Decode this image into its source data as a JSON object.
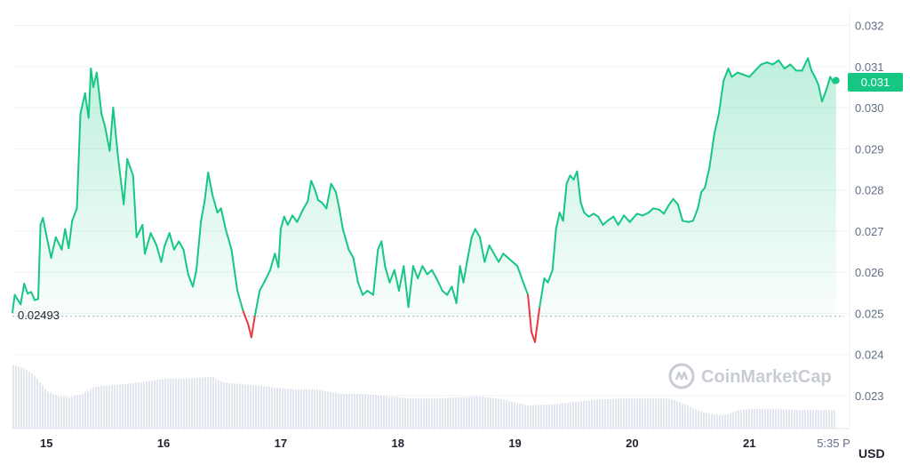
{
  "chart_data": {
    "type": "line",
    "y_ticks": [
      "0.032",
      "0.031",
      "0.030",
      "0.029",
      "0.028",
      "0.027",
      "0.026",
      "0.025",
      "0.024",
      "0.023"
    ],
    "y_tick_values": [
      0.032,
      0.031,
      0.03,
      0.029,
      0.028,
      0.027,
      0.026,
      0.025,
      0.024,
      0.023
    ],
    "ylim": [
      0.0222,
      0.0324
    ],
    "x_ticks": [
      "15",
      "16",
      "17",
      "18",
      "19",
      "20",
      "21"
    ],
    "x_last_tick": "5:35 P",
    "x_range_days": [
      14.71,
      21.81
    ],
    "unit_label": "USD",
    "reference_value": 0.02493,
    "reference_label": "0.02493",
    "current_price_label": "0.031",
    "current_price": 0.03066,
    "watermark": "CoinMarketCap",
    "colors": {
      "up": "#16c784",
      "down": "#ea3943",
      "grid": "#eff2f5",
      "tag": "#16c784"
    },
    "series": [
      {
        "values": [
          [
            14.71,
            0.02502
          ],
          [
            14.73,
            0.02545
          ],
          [
            14.75,
            0.02535
          ],
          [
            14.78,
            0.02522
          ],
          [
            14.81,
            0.02572
          ],
          [
            14.84,
            0.02548
          ],
          [
            14.87,
            0.02552
          ],
          [
            14.9,
            0.02532
          ],
          [
            14.93,
            0.02535
          ],
          [
            14.95,
            0.02715
          ],
          [
            14.97,
            0.02732
          ],
          [
            15.0,
            0.0269
          ],
          [
            15.04,
            0.02635
          ],
          [
            15.08,
            0.02685
          ],
          [
            15.13,
            0.02655
          ],
          [
            15.16,
            0.02705
          ],
          [
            15.19,
            0.02658
          ],
          [
            15.22,
            0.02725
          ],
          [
            15.26,
            0.02755
          ],
          [
            15.29,
            0.02985
          ],
          [
            15.33,
            0.03035
          ],
          [
            15.36,
            0.02975
          ],
          [
            15.38,
            0.03095
          ],
          [
            15.4,
            0.0305
          ],
          [
            15.43,
            0.03085
          ],
          [
            15.47,
            0.02985
          ],
          [
            15.5,
            0.02955
          ],
          [
            15.54,
            0.02895
          ],
          [
            15.57,
            0.03
          ],
          [
            15.61,
            0.02885
          ],
          [
            15.66,
            0.02765
          ],
          [
            15.69,
            0.02875
          ],
          [
            15.74,
            0.02835
          ],
          [
            15.77,
            0.02685
          ],
          [
            15.82,
            0.02715
          ],
          [
            15.84,
            0.02645
          ],
          [
            15.89,
            0.02695
          ],
          [
            15.94,
            0.02665
          ],
          [
            15.98,
            0.02625
          ],
          [
            16.01,
            0.02665
          ],
          [
            16.05,
            0.02695
          ],
          [
            16.09,
            0.02655
          ],
          [
            16.13,
            0.02675
          ],
          [
            16.17,
            0.02655
          ],
          [
            16.21,
            0.02595
          ],
          [
            16.25,
            0.02565
          ],
          [
            16.28,
            0.02605
          ],
          [
            16.32,
            0.02725
          ],
          [
            16.35,
            0.02772
          ],
          [
            16.38,
            0.02842
          ],
          [
            16.42,
            0.02785
          ],
          [
            16.46,
            0.02745
          ],
          [
            16.49,
            0.02755
          ],
          [
            16.53,
            0.02705
          ],
          [
            16.58,
            0.02655
          ],
          [
            16.63,
            0.02555
          ],
          [
            16.68,
            0.02505
          ],
          [
            16.72,
            0.02475
          ],
          [
            16.75,
            0.02442
          ],
          [
            16.78,
            0.02495
          ],
          [
            16.82,
            0.02555
          ],
          [
            16.87,
            0.02582
          ],
          [
            16.91,
            0.02605
          ],
          [
            16.95,
            0.02645
          ],
          [
            16.98,
            0.02612
          ],
          [
            17.0,
            0.02705
          ],
          [
            17.03,
            0.02735
          ],
          [
            17.06,
            0.02715
          ],
          [
            17.1,
            0.02738
          ],
          [
            17.14,
            0.02722
          ],
          [
            17.19,
            0.02752
          ],
          [
            17.23,
            0.02772
          ],
          [
            17.26,
            0.02822
          ],
          [
            17.29,
            0.02802
          ],
          [
            17.32,
            0.02775
          ],
          [
            17.35,
            0.0277
          ],
          [
            17.39,
            0.02755
          ],
          [
            17.43,
            0.02815
          ],
          [
            17.47,
            0.02795
          ],
          [
            17.5,
            0.02755
          ],
          [
            17.53,
            0.02705
          ],
          [
            17.58,
            0.02655
          ],
          [
            17.62,
            0.02635
          ],
          [
            17.66,
            0.02575
          ],
          [
            17.7,
            0.02545
          ],
          [
            17.74,
            0.02555
          ],
          [
            17.79,
            0.02545
          ],
          [
            17.83,
            0.02655
          ],
          [
            17.86,
            0.02675
          ],
          [
            17.89,
            0.02615
          ],
          [
            17.93,
            0.02575
          ],
          [
            17.97,
            0.02605
          ],
          [
            18.01,
            0.02555
          ],
          [
            18.05,
            0.02615
          ],
          [
            18.09,
            0.02515
          ],
          [
            18.13,
            0.02615
          ],
          [
            18.17,
            0.02585
          ],
          [
            18.21,
            0.02615
          ],
          [
            18.25,
            0.02595
          ],
          [
            18.29,
            0.02605
          ],
          [
            18.33,
            0.02585
          ],
          [
            18.38,
            0.02555
          ],
          [
            18.42,
            0.02545
          ],
          [
            18.46,
            0.02565
          ],
          [
            18.5,
            0.02525
          ],
          [
            18.53,
            0.02615
          ],
          [
            18.56,
            0.02575
          ],
          [
            18.59,
            0.02625
          ],
          [
            18.63,
            0.02685
          ],
          [
            18.66,
            0.02705
          ],
          [
            18.7,
            0.02685
          ],
          [
            18.74,
            0.02625
          ],
          [
            18.78,
            0.02665
          ],
          [
            18.82,
            0.02645
          ],
          [
            18.86,
            0.02625
          ],
          [
            18.9,
            0.02645
          ],
          [
            18.94,
            0.02635
          ],
          [
            18.98,
            0.02625
          ],
          [
            19.02,
            0.02615
          ],
          [
            19.07,
            0.02575
          ],
          [
            19.11,
            0.02545
          ],
          [
            19.14,
            0.02455
          ],
          [
            19.17,
            0.0243
          ],
          [
            19.21,
            0.02515
          ],
          [
            19.25,
            0.02585
          ],
          [
            19.28,
            0.02575
          ],
          [
            19.32,
            0.02605
          ],
          [
            19.35,
            0.02705
          ],
          [
            19.38,
            0.02745
          ],
          [
            19.41,
            0.02725
          ],
          [
            19.44,
            0.02815
          ],
          [
            19.47,
            0.02835
          ],
          [
            19.5,
            0.02825
          ],
          [
            19.53,
            0.02845
          ],
          [
            19.56,
            0.0277
          ],
          [
            19.59,
            0.02745
          ],
          [
            19.63,
            0.02735
          ],
          [
            19.67,
            0.02742
          ],
          [
            19.71,
            0.02735
          ],
          [
            19.75,
            0.02715
          ],
          [
            19.79,
            0.02725
          ],
          [
            19.84,
            0.02735
          ],
          [
            19.88,
            0.02715
          ],
          [
            19.93,
            0.02738
          ],
          [
            19.98,
            0.02722
          ],
          [
            20.04,
            0.02742
          ],
          [
            20.09,
            0.02738
          ],
          [
            20.14,
            0.02745
          ],
          [
            20.18,
            0.02755
          ],
          [
            20.23,
            0.02752
          ],
          [
            20.27,
            0.02742
          ],
          [
            20.31,
            0.02762
          ],
          [
            20.35,
            0.02778
          ],
          [
            20.39,
            0.02765
          ],
          [
            20.43,
            0.02725
          ],
          [
            20.48,
            0.02722
          ],
          [
            20.52,
            0.02725
          ],
          [
            20.56,
            0.02755
          ],
          [
            20.59,
            0.02795
          ],
          [
            20.62,
            0.02805
          ],
          [
            20.66,
            0.02855
          ],
          [
            20.7,
            0.02935
          ],
          [
            20.74,
            0.02985
          ],
          [
            20.78,
            0.03065
          ],
          [
            20.82,
            0.03095
          ],
          [
            20.85,
            0.03075
          ],
          [
            20.9,
            0.03085
          ],
          [
            20.95,
            0.0308
          ],
          [
            21.0,
            0.03075
          ],
          [
            21.05,
            0.0309
          ],
          [
            21.1,
            0.03105
          ],
          [
            21.15,
            0.0311
          ],
          [
            21.2,
            0.03105
          ],
          [
            21.25,
            0.03115
          ],
          [
            21.3,
            0.03095
          ],
          [
            21.35,
            0.03105
          ],
          [
            21.4,
            0.0309
          ],
          [
            21.45,
            0.0309
          ],
          [
            21.5,
            0.0312
          ],
          [
            21.53,
            0.0309
          ],
          [
            21.56,
            0.03075
          ],
          [
            21.59,
            0.03055
          ],
          [
            21.62,
            0.03015
          ],
          [
            21.66,
            0.03045
          ],
          [
            21.69,
            0.03075
          ],
          [
            21.72,
            0.0306
          ],
          [
            21.74,
            0.03066
          ]
        ],
        "volume_relative": [
          [
            14.71,
            0.55
          ],
          [
            14.8,
            0.52
          ],
          [
            14.9,
            0.45
          ],
          [
            15.0,
            0.32
          ],
          [
            15.1,
            0.28
          ],
          [
            15.2,
            0.27
          ],
          [
            15.3,
            0.3
          ],
          [
            15.4,
            0.36
          ],
          [
            15.6,
            0.38
          ],
          [
            15.8,
            0.4
          ],
          [
            16.0,
            0.43
          ],
          [
            16.2,
            0.43
          ],
          [
            16.4,
            0.45
          ],
          [
            16.5,
            0.4
          ],
          [
            16.7,
            0.38
          ],
          [
            16.9,
            0.36
          ],
          [
            17.1,
            0.34
          ],
          [
            17.3,
            0.34
          ],
          [
            17.5,
            0.3
          ],
          [
            17.7,
            0.3
          ],
          [
            17.9,
            0.28
          ],
          [
            18.1,
            0.26
          ],
          [
            18.3,
            0.26
          ],
          [
            18.5,
            0.27
          ],
          [
            18.7,
            0.28
          ],
          [
            18.9,
            0.25
          ],
          [
            19.1,
            0.2
          ],
          [
            19.3,
            0.21
          ],
          [
            19.5,
            0.23
          ],
          [
            19.7,
            0.25
          ],
          [
            19.9,
            0.26
          ],
          [
            20.1,
            0.26
          ],
          [
            20.3,
            0.26
          ],
          [
            20.4,
            0.23
          ],
          [
            20.5,
            0.18
          ],
          [
            20.6,
            0.14
          ],
          [
            20.7,
            0.12
          ],
          [
            20.8,
            0.12
          ],
          [
            20.9,
            0.16
          ],
          [
            21.0,
            0.17
          ],
          [
            21.2,
            0.17
          ],
          [
            21.4,
            0.16
          ],
          [
            21.6,
            0.16
          ],
          [
            21.74,
            0.16
          ]
        ]
      }
    ]
  }
}
